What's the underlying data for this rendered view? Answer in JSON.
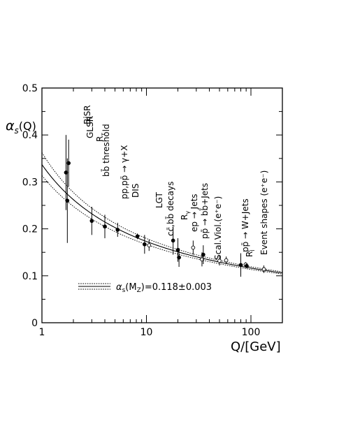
{
  "chart_data": {
    "type": "scatter",
    "title": "",
    "xlabel": "Q/[GeV]",
    "ylabel_main": "α",
    "ylabel_sub": "s",
    "ylabel_tail": "(Q)",
    "x_scale": "log",
    "xlim": [
      1,
      200
    ],
    "ylim": [
      0,
      0.5
    ],
    "x_ticks": [
      1,
      10,
      100
    ],
    "x_tick_labels": [
      "1",
      "10",
      "100"
    ],
    "y_ticks": [
      0,
      0.1,
      0.2,
      0.3,
      0.4,
      0.5
    ],
    "y_tick_labels": [
      "0",
      "0.1",
      "0.2",
      "0.3",
      "0.4",
      "0.5"
    ],
    "grid": false,
    "curve": {
      "name_main": "α",
      "name_sub": "s",
      "name_tail": "(M",
      "name_sub2": "Z",
      "name_end": ")=0.118±0.003",
      "alpha_mz": 0.118,
      "uncertainty": 0.003,
      "mz": 91.19
    },
    "measurements": [
      {
        "x": 1.7,
        "y": 0.32,
        "err": 0.08,
        "filled": true
      },
      {
        "x": 1.75,
        "y": 0.26,
        "err": 0.09,
        "filled": true
      },
      {
        "x": 1.8,
        "y": 0.34,
        "err": 0.05,
        "filled": true
      },
      {
        "x": 3.0,
        "y": 0.217,
        "err": 0.03,
        "filled": true
      },
      {
        "x": 4.0,
        "y": 0.205,
        "err": 0.025,
        "filled": true
      },
      {
        "x": 5.3,
        "y": 0.198,
        "err": 0.015,
        "filled": true
      },
      {
        "x": 8.2,
        "y": 0.184,
        "err": 0.006,
        "filled": true
      },
      {
        "x": 9.6,
        "y": 0.167,
        "err": 0.02,
        "filled": true
      },
      {
        "x": 10.6,
        "y": 0.165,
        "err": 0.012,
        "filled": false
      },
      {
        "x": 18.0,
        "y": 0.175,
        "err": 0.03,
        "filled": true
      },
      {
        "x": 20.0,
        "y": 0.155,
        "err": 0.025,
        "filled": true
      },
      {
        "x": 20.5,
        "y": 0.139,
        "err": 0.02,
        "filled": true
      },
      {
        "x": 28.0,
        "y": 0.16,
        "err": 0.015,
        "filled": false
      },
      {
        "x": 34.0,
        "y": 0.135,
        "err": 0.015,
        "filled": false
      },
      {
        "x": 35.0,
        "y": 0.145,
        "err": 0.02,
        "filled": true
      },
      {
        "x": 50.0,
        "y": 0.132,
        "err": 0.01,
        "filled": false
      },
      {
        "x": 58.0,
        "y": 0.133,
        "err": 0.008,
        "filled": false
      },
      {
        "x": 80.0,
        "y": 0.123,
        "err": 0.025,
        "filled": true
      },
      {
        "x": 89.0,
        "y": 0.124,
        "err": 0.005,
        "filled": false
      },
      {
        "x": 91.0,
        "y": 0.121,
        "err": 0.005,
        "filled": true
      },
      {
        "x": 133.0,
        "y": 0.114,
        "err": 0.008,
        "filled": false
      }
    ],
    "annotations": [
      {
        "text": "BjSR"
      },
      {
        "text": "GLSR"
      },
      {
        "text_main": "R",
        "text_sub": "τ"
      },
      {
        "text": "bb̄ threshold"
      },
      {
        "text": "pp,pp̄ → γ+X"
      },
      {
        "text": "DIS"
      },
      {
        "text": "LGT"
      },
      {
        "text": "cc̄,bb̄ decays"
      },
      {
        "text_main": "R",
        "text_sub": "γ"
      },
      {
        "text": "ep → Jets"
      },
      {
        "text": "pp̄ → bb̄+Jets"
      },
      {
        "text": "Scal.Viol.(e⁺e⁻)"
      },
      {
        "text": "pp̄ → W+Jets"
      },
      {
        "text_main": "R",
        "text_sub": "l"
      },
      {
        "text": "Event shapes (e⁺e⁻)"
      }
    ]
  }
}
